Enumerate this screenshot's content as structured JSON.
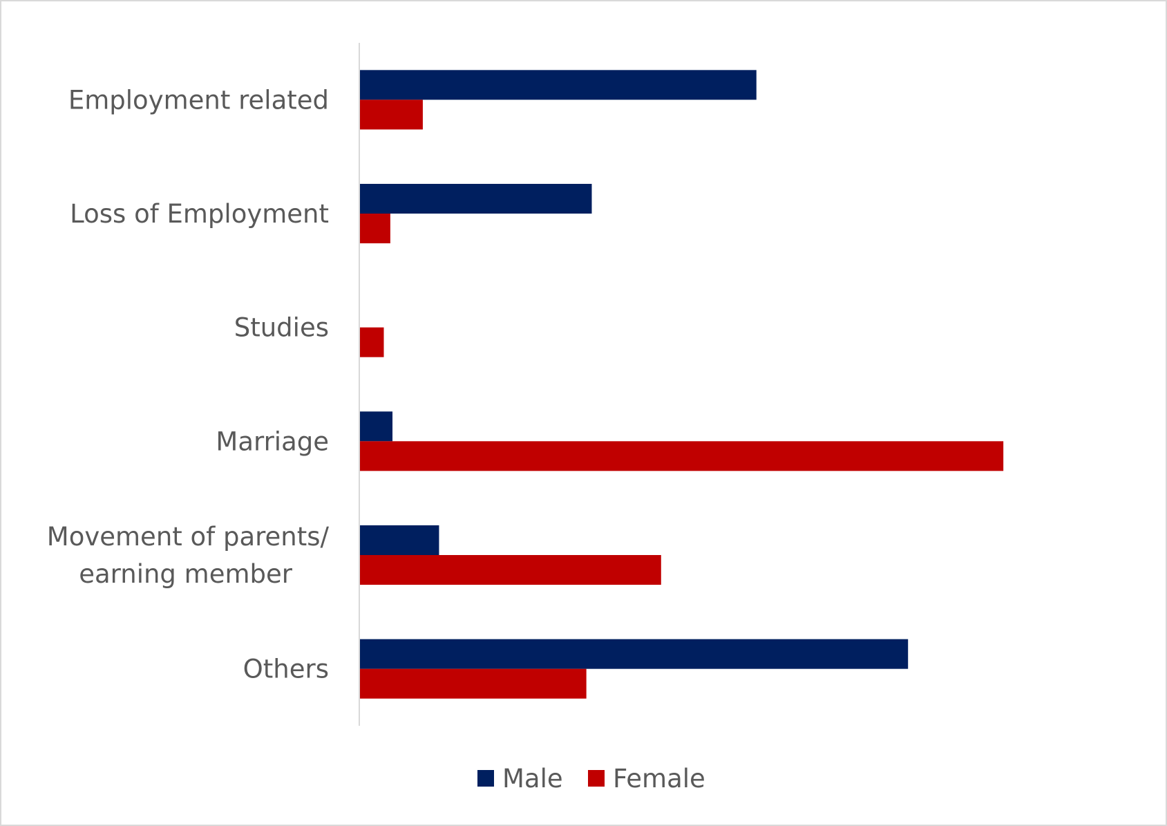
{
  "chart_data": {
    "type": "bar",
    "orientation": "horizontal",
    "categories": [
      "Employment related",
      "Loss of Employment",
      "Studies",
      "Marriage",
      "Movement of parents/ earning member",
      "Others"
    ],
    "category_lines": [
      [
        "Employment related"
      ],
      [
        "Loss of Employment"
      ],
      [
        "Studies"
      ],
      [
        "Marriage"
      ],
      [
        "Movement of parents/",
        "earning member"
      ],
      [
        "Others"
      ]
    ],
    "series": [
      {
        "name": "Male",
        "color": "#001f5f",
        "values": [
          36.6,
          21.4,
          0,
          3.0,
          7.3,
          50.6
        ]
      },
      {
        "name": "Female",
        "color": "#c00000",
        "values": [
          5.8,
          2.8,
          2.2,
          59.4,
          27.8,
          20.9
        ]
      }
    ],
    "xlim": [
      0,
      71
    ],
    "title": "",
    "xlabel": "",
    "ylabel": "",
    "grid": false,
    "value_axis_visible": false,
    "legend_position": "bottom"
  }
}
